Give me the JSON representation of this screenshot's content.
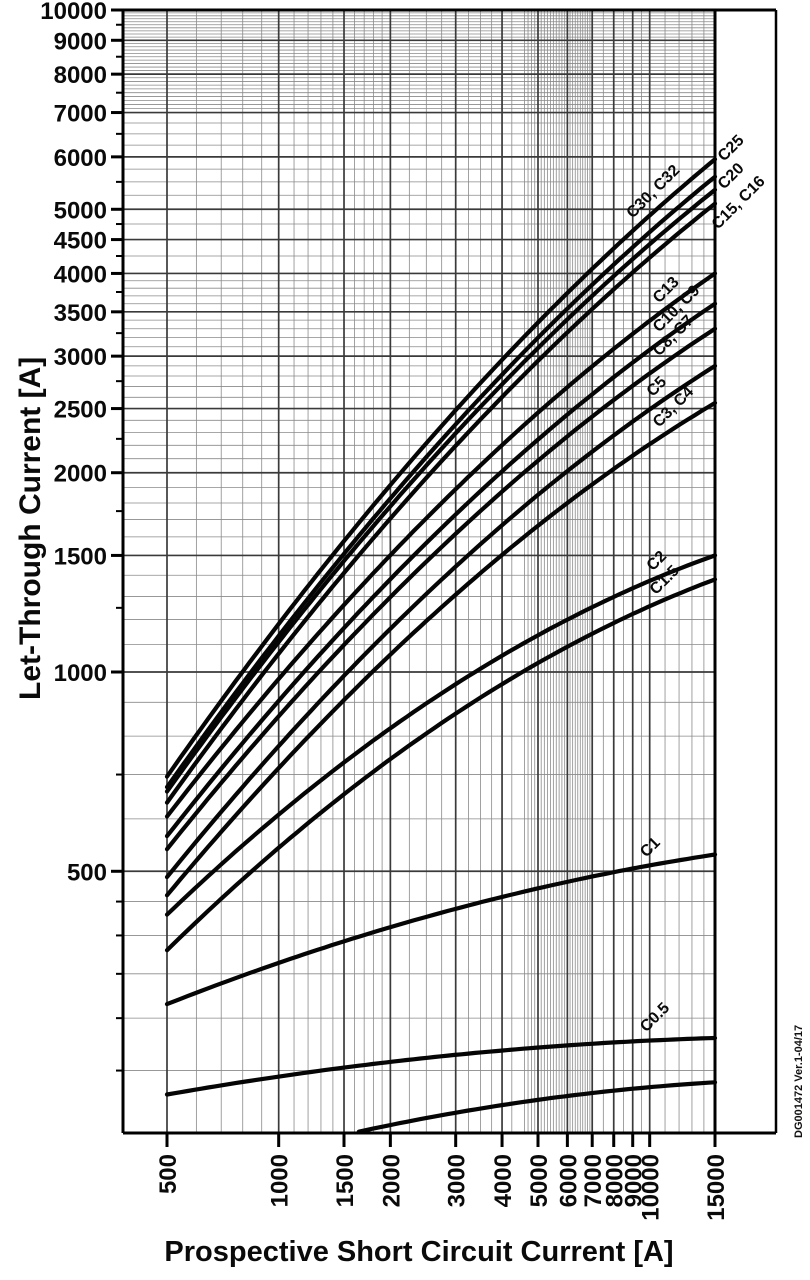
{
  "figure": {
    "watermark": "DG001472  Ver.1-04/17"
  },
  "chart_data": {
    "type": "line",
    "title": "",
    "x_axis": {
      "label": "Prospective Short Circuit Current [A]",
      "scale": "log",
      "min": 380,
      "max": 15000,
      "ticks": [
        500,
        1000,
        1500,
        2000,
        3000,
        4000,
        5000,
        6000,
        7000,
        8000,
        9000,
        10000,
        15000
      ]
    },
    "y_axis": {
      "label": "Let-Through Current [A]",
      "scale": "log",
      "min": 200,
      "max": 10000,
      "ticks": [
        10000,
        9000,
        8000,
        7000,
        6000,
        5000,
        4500,
        4000,
        3500,
        3000,
        2500,
        2000,
        1500,
        1000,
        500
      ],
      "minor_ticks": [
        9500,
        8500,
        7500,
        6500,
        5500,
        4750,
        4250,
        3750,
        3250,
        2750,
        2250,
        1750,
        1250,
        700,
        450,
        400,
        350,
        300,
        250
      ]
    },
    "grid": true,
    "legend_position": "on-curve-labels",
    "series": [
      {
        "name": "c30-c32",
        "label": "C30, C32",
        "bend": 0.25,
        "label_at": 9000,
        "label_dy": 12,
        "outside": false,
        "values": {
          "500": 695,
          "1000": 1180,
          "2000": 1920,
          "5000": 3370,
          "10000": 4890,
          "15000": 5950
        }
      },
      {
        "name": "c25",
        "label": "C25",
        "bend": 0.25,
        "label_at": null,
        "outside": true,
        "label_anchor": [
          724,
          162
        ],
        "values": {
          "500": 670,
          "1000": 1130,
          "2000": 1830,
          "5000": 3200,
          "10000": 4620,
          "15000": 5600
        }
      },
      {
        "name": "c20",
        "label": "C20",
        "bend": 0.25,
        "label_at": null,
        "outside": true,
        "label_anchor": [
          724,
          190
        ],
        "values": {
          "500": 660,
          "1000": 1110,
          "2000": 1780,
          "5000": 3090,
          "10000": 4430,
          "15000": 5350
        }
      },
      {
        "name": "c15-c16",
        "label": "C15, C16",
        "bend": 0.25,
        "label_at": null,
        "outside": true,
        "label_anchor": [
          718,
          230
        ],
        "values": {
          "500": 635,
          "1000": 1070,
          "2000": 1710,
          "5000": 2950,
          "10000": 4230,
          "15000": 5100
        }
      },
      {
        "name": "c13",
        "label": "C13",
        "bend": 0.25,
        "label_at": 10600,
        "label_dy": 10,
        "outside": false,
        "values": {
          "500": 605,
          "1000": 980,
          "2000": 1500,
          "5000": 2470,
          "10000": 3390,
          "15000": 4000
        }
      },
      {
        "name": "c10-c9",
        "label": "C10, C9",
        "bend": 0.25,
        "label_at": 10600,
        "label_dy": 10,
        "outside": false,
        "values": {
          "500": 565,
          "1000": 905,
          "2000": 1380,
          "5000": 2250,
          "10000": 3070,
          "15000": 3600
        }
      },
      {
        "name": "c8-c7",
        "label": "C8, C7",
        "bend": 0.25,
        "label_at": 10600,
        "label_dy": 10,
        "outside": false,
        "values": {
          "500": 540,
          "1000": 860,
          "2000": 1300,
          "5000": 2090,
          "10000": 2830,
          "15000": 3300
        }
      },
      {
        "name": "c5",
        "label": "C5",
        "bend": 0.25,
        "label_at": 10200,
        "label_dy": 10,
        "outside": false,
        "values": {
          "500": 490,
          "1000": 775,
          "2000": 1160,
          "5000": 1850,
          "10000": 2490,
          "15000": 2900
        }
      },
      {
        "name": "c3-c4",
        "label": "C3, C4",
        "bend": 0.25,
        "label_at": 10600,
        "label_dy": 10,
        "outside": false,
        "values": {
          "500": 460,
          "1000": 715,
          "2000": 1060,
          "5000": 1660,
          "10000": 2210,
          "15000": 2550
        }
      },
      {
        "name": "c2",
        "label": "C2",
        "bend": 0.25,
        "label_at": 10200,
        "label_dy": 8,
        "outside": false,
        "values": {
          "500": 430,
          "1000": 610,
          "2000": 820,
          "5000": 1140,
          "10000": 1370,
          "15000": 1500
        }
      },
      {
        "name": "c1-5",
        "label": "C1.5",
        "bend": 0.25,
        "label_at": 10400,
        "label_dy": 8,
        "outside": false,
        "values": {
          "500": 380,
          "1000": 545,
          "2000": 740,
          "5000": 1030,
          "10000": 1260,
          "15000": 1380
        }
      },
      {
        "name": "c1",
        "label": "C1",
        "bend": 0.1,
        "label_at": 9800,
        "label_dy": 8,
        "outside": false,
        "values": {
          "500": 315,
          "1000": 365,
          "2000": 410,
          "5000": 450,
          "10000": 510,
          "15000": 530
        }
      },
      {
        "name": "c0-5",
        "label": "C0.5",
        "bend": 0.06,
        "label_at": 9800,
        "label_dy": 8,
        "outside": false,
        "values": {
          "500": 230,
          "1000": 245,
          "2000": 258,
          "5000": 263,
          "10000": 277,
          "15000": 280
        }
      },
      {
        "name": "lowest-unlabeled",
        "label": "",
        "bend": 0.1,
        "label_at": null,
        "outside": false,
        "values": {
          "500": 170,
          "1000": 189,
          "2000": 207,
          "5000": 226,
          "10000": 235,
          "15000": 240
        }
      }
    ]
  }
}
